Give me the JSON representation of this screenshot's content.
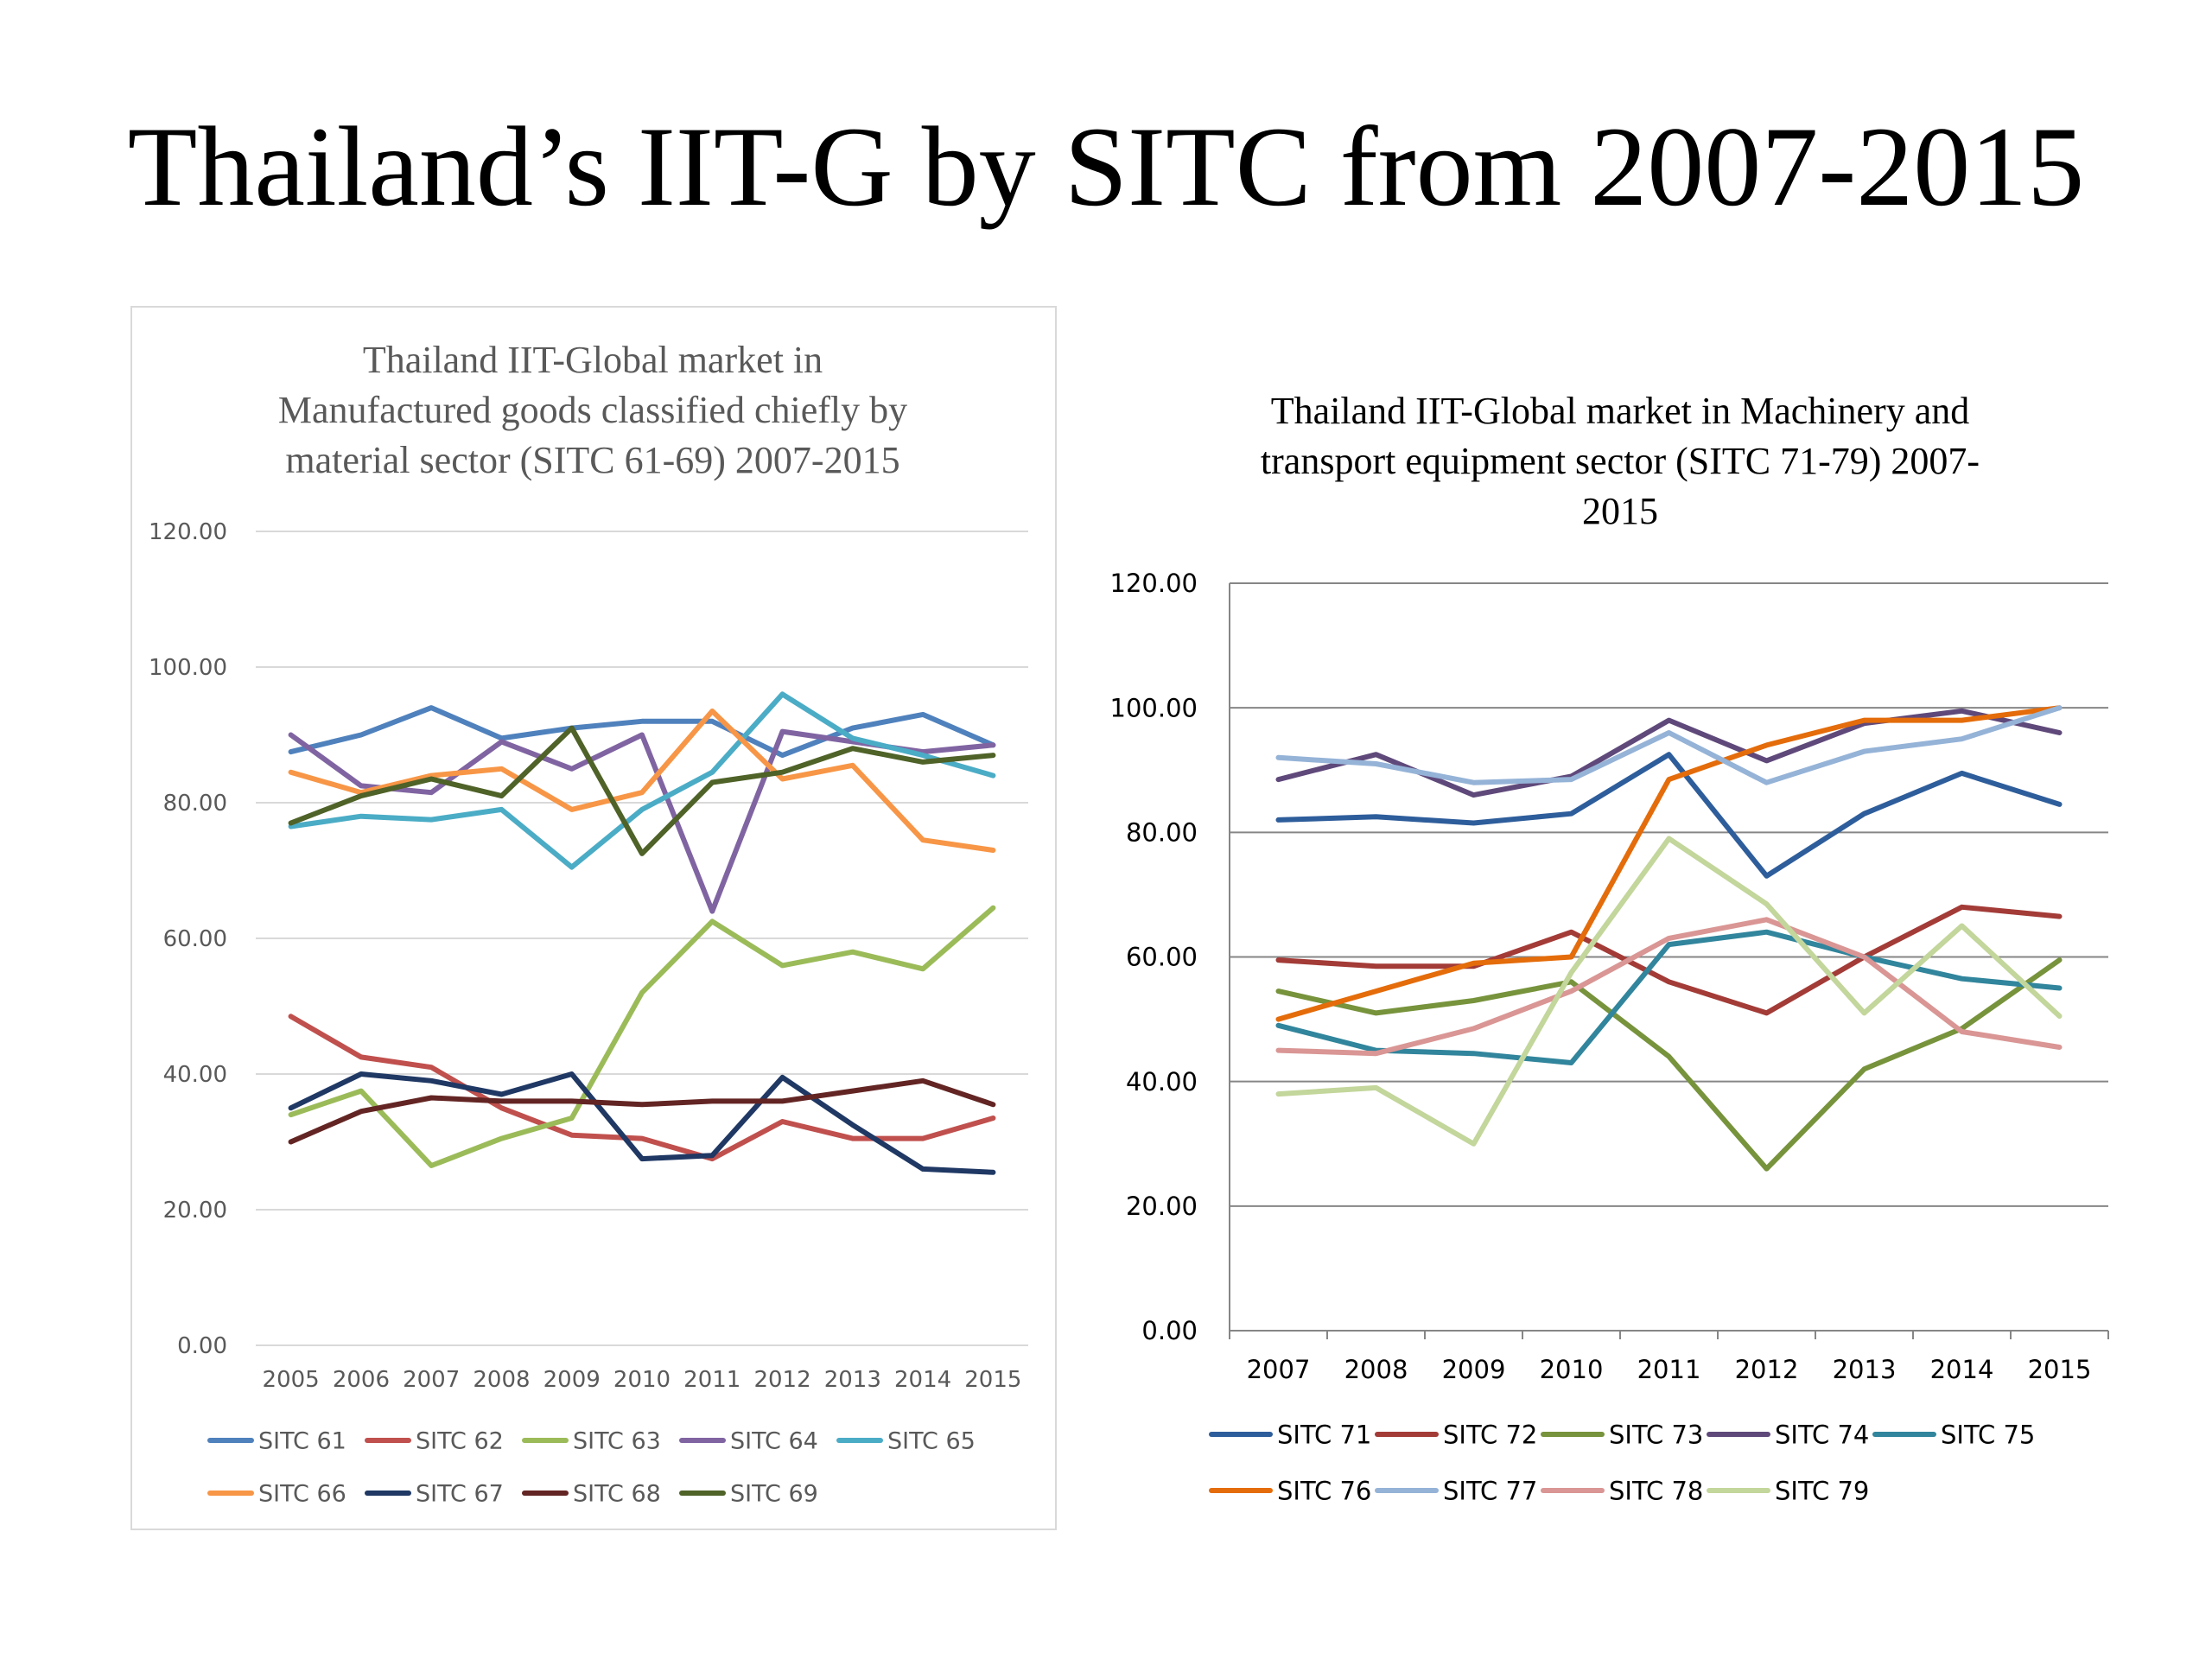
{
  "page": {
    "title": "Thailand’s IIT-G by SITC from 2007-2015"
  },
  "chart_data": [
    {
      "type": "line",
      "title": "Thailand IIT-Global market in Manufactured goods classified chiefly by material sector (SITC 61-69) 2007-2015",
      "title_lines": [
        "Thailand IIT-Global market in",
        "Manufactured goods classified chiefly by",
        "material sector (SITC 61-69) 2007-2015"
      ],
      "xlabel": "",
      "ylabel": "",
      "x": [
        "2005",
        "2006",
        "2007",
        "2008",
        "2009",
        "2010",
        "2011",
        "2012",
        "2013",
        "2014",
        "2015"
      ],
      "ylim": [
        0,
        120
      ],
      "yticks": [
        "0.00",
        "20.00",
        "40.00",
        "60.00",
        "80.00",
        "100.00",
        "120.00"
      ],
      "grid": true,
      "legend_position": "bottom",
      "series": [
        {
          "name": "SITC 61",
          "color": "#4f81bd",
          "values": [
            87.5,
            90.0,
            94.0,
            89.5,
            91.0,
            92.0,
            92.0,
            87.0,
            91.0,
            93.0,
            88.5
          ]
        },
        {
          "name": "SITC 62",
          "color": "#c0504d",
          "values": [
            48.5,
            42.5,
            41.0,
            35.0,
            31.0,
            30.5,
            27.5,
            33.0,
            30.5,
            30.5,
            33.5
          ]
        },
        {
          "name": "SITC 63",
          "color": "#9bbb59",
          "values": [
            34.0,
            37.5,
            26.5,
            30.5,
            33.5,
            52.0,
            62.5,
            56.0,
            58.0,
            55.5,
            64.5
          ]
        },
        {
          "name": "SITC 64",
          "color": "#8064a2",
          "values": [
            90.0,
            82.5,
            81.5,
            89.0,
            85.0,
            90.0,
            64.0,
            90.5,
            89.0,
            87.5,
            88.5
          ]
        },
        {
          "name": "SITC 65",
          "color": "#4bacc6",
          "values": [
            76.5,
            78.0,
            77.5,
            79.0,
            70.5,
            79.0,
            84.5,
            96.0,
            89.5,
            87.0,
            84.0
          ]
        },
        {
          "name": "SITC 66",
          "color": "#f79646",
          "values": [
            84.5,
            81.5,
            84.0,
            85.0,
            79.0,
            81.5,
            93.5,
            83.5,
            85.5,
            74.5,
            73.0
          ]
        },
        {
          "name": "SITC 67",
          "color": "#1f3864",
          "values": [
            35.0,
            40.0,
            39.0,
            37.0,
            40.0,
            27.5,
            28.0,
            39.5,
            32.5,
            26.0,
            25.5
          ]
        },
        {
          "name": "SITC 68",
          "color": "#632523",
          "values": [
            30.0,
            34.5,
            36.5,
            36.0,
            36.0,
            35.5,
            36.0,
            36.0,
            37.5,
            39.0,
            35.5
          ]
        },
        {
          "name": "SITC 69",
          "color": "#4f6228",
          "values": [
            77.0,
            81.0,
            83.5,
            81.0,
            91.0,
            72.5,
            83.0,
            84.5,
            88.0,
            86.0,
            87.0
          ]
        }
      ]
    },
    {
      "type": "line",
      "title": "Thailand IIT-Global  market in Machinery and transport equipment sector (SITC 71-79) 2007-2015",
      "title_lines": [
        "Thailand IIT-Global  market in Machinery and",
        "transport equipment sector (SITC 71-79) 2007-",
        "2015"
      ],
      "xlabel": "",
      "ylabel": "",
      "x": [
        "2007",
        "2008",
        "2009",
        "2010",
        "2011",
        "2012",
        "2013",
        "2014",
        "2015"
      ],
      "ylim": [
        0,
        120
      ],
      "yticks": [
        "0.00",
        "20.00",
        "40.00",
        "60.00",
        "80.00",
        "100.00",
        "120.00"
      ],
      "grid": true,
      "legend_position": "bottom",
      "series": [
        {
          "name": "SITC 71",
          "color": "#2e5d9b",
          "values": [
            82.0,
            82.5,
            81.5,
            83.0,
            92.5,
            73.0,
            83.0,
            89.5,
            84.5
          ]
        },
        {
          "name": "SITC 72",
          "color": "#a33b37",
          "values": [
            59.5,
            58.5,
            58.5,
            64.0,
            56.0,
            51.0,
            60.0,
            68.0,
            66.5
          ]
        },
        {
          "name": "SITC 73",
          "color": "#77933c",
          "values": [
            54.5,
            51.0,
            53.0,
            56.0,
            44.0,
            26.0,
            42.0,
            48.5,
            59.5
          ]
        },
        {
          "name": "SITC 74",
          "color": "#5f497a",
          "values": [
            88.5,
            92.5,
            86.0,
            89.0,
            98.0,
            91.5,
            97.5,
            99.5,
            96.0
          ]
        },
        {
          "name": "SITC 75",
          "color": "#31859c",
          "values": [
            49.0,
            45.0,
            44.5,
            43.0,
            62.0,
            64.0,
            60.0,
            56.5,
            55.0
          ]
        },
        {
          "name": "SITC 76",
          "color": "#e46c0a",
          "values": [
            50.0,
            54.5,
            59.0,
            60.0,
            88.5,
            94.0,
            98.0,
            98.0,
            100.0
          ]
        },
        {
          "name": "SITC 77",
          "color": "#95b3d7",
          "values": [
            92.0,
            91.0,
            88.0,
            88.5,
            96.0,
            88.0,
            93.0,
            95.0,
            100.0
          ]
        },
        {
          "name": "SITC 78",
          "color": "#d99694",
          "values": [
            45.0,
            44.5,
            48.5,
            54.5,
            63.0,
            66.0,
            60.0,
            48.0,
            45.5
          ]
        },
        {
          "name": "SITC 79",
          "color": "#c3d69b",
          "values": [
            38.0,
            39.0,
            30.0,
            57.5,
            79.0,
            68.5,
            51.0,
            65.0,
            50.5
          ]
        }
      ]
    }
  ]
}
